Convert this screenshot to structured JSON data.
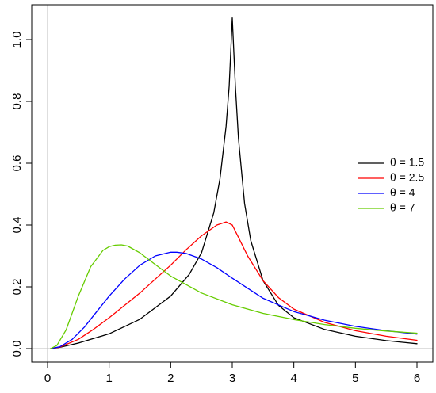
{
  "chart_data": {
    "type": "line",
    "title": "",
    "xlabel": "",
    "ylabel": "",
    "xlim": [
      0,
      6
    ],
    "ylim": [
      0,
      1.1
    ],
    "x_ticks": [
      0,
      1,
      2,
      3,
      4,
      5,
      6
    ],
    "y_ticks": [
      0.0,
      0.2,
      0.4,
      0.6,
      0.8,
      1.0
    ],
    "x_tick_labels": [
      "0",
      "1",
      "2",
      "3",
      "4",
      "5",
      "6"
    ],
    "y_tick_labels": [
      "0.0",
      "0.2",
      "0.4",
      "0.6",
      "0.8",
      "1.0"
    ],
    "reference_lines": [
      {
        "axis": "x",
        "value": 0,
        "color": "#bebebe"
      },
      {
        "axis": "y",
        "value": 0,
        "color": "#bebebe"
      }
    ],
    "grid": false,
    "legend_position": "right",
    "series": [
      {
        "name": "θ = 1.5",
        "color": "#000000",
        "x": [
          0.05,
          0.2,
          0.5,
          1.0,
          1.5,
          2.0,
          2.3,
          2.5,
          2.7,
          2.8,
          2.9,
          2.95,
          3.0,
          3.05,
          3.1,
          3.2,
          3.3,
          3.5,
          3.75,
          4.0,
          4.5,
          5.0,
          5.5,
          6.0
        ],
        "y": [
          0.0,
          0.004,
          0.018,
          0.048,
          0.095,
          0.17,
          0.24,
          0.31,
          0.44,
          0.55,
          0.72,
          0.85,
          1.07,
          0.85,
          0.68,
          0.47,
          0.35,
          0.22,
          0.14,
          0.1,
          0.062,
          0.04,
          0.026,
          0.016
        ]
      },
      {
        "name": "θ = 2.5",
        "color": "#ff0000",
        "x": [
          0.05,
          0.2,
          0.5,
          0.75,
          1.0,
          1.5,
          2.0,
          2.25,
          2.5,
          2.75,
          2.9,
          3.0,
          3.1,
          3.25,
          3.5,
          3.75,
          4.0,
          4.5,
          5.0,
          5.5,
          6.0
        ],
        "y": [
          0.0,
          0.005,
          0.03,
          0.063,
          0.1,
          0.18,
          0.27,
          0.32,
          0.365,
          0.4,
          0.41,
          0.4,
          0.36,
          0.3,
          0.22,
          0.165,
          0.128,
          0.085,
          0.058,
          0.04,
          0.027
        ]
      },
      {
        "name": "θ = 4",
        "color": "#0000ff",
        "x": [
          0.05,
          0.2,
          0.4,
          0.6,
          0.8,
          1.0,
          1.25,
          1.5,
          1.75,
          2.0,
          2.1,
          2.25,
          2.5,
          2.75,
          3.0,
          3.5,
          4.0,
          4.5,
          5.0,
          5.5,
          6.0
        ],
        "y": [
          0.0,
          0.006,
          0.03,
          0.07,
          0.12,
          0.17,
          0.225,
          0.27,
          0.3,
          0.312,
          0.312,
          0.308,
          0.29,
          0.262,
          0.228,
          0.163,
          0.12,
          0.092,
          0.072,
          0.058,
          0.047
        ]
      },
      {
        "name": "θ = 7",
        "color": "#66cc00",
        "x": [
          0.05,
          0.15,
          0.3,
          0.5,
          0.7,
          0.9,
          1.0,
          1.1,
          1.2,
          1.3,
          1.5,
          1.75,
          2.0,
          2.5,
          3.0,
          3.5,
          4.0,
          4.5,
          5.0,
          5.5,
          6.0
        ],
        "y": [
          0.0,
          0.01,
          0.06,
          0.17,
          0.265,
          0.318,
          0.33,
          0.335,
          0.336,
          0.332,
          0.31,
          0.272,
          0.235,
          0.18,
          0.142,
          0.114,
          0.094,
          0.078,
          0.066,
          0.057,
          0.05
        ]
      }
    ]
  }
}
